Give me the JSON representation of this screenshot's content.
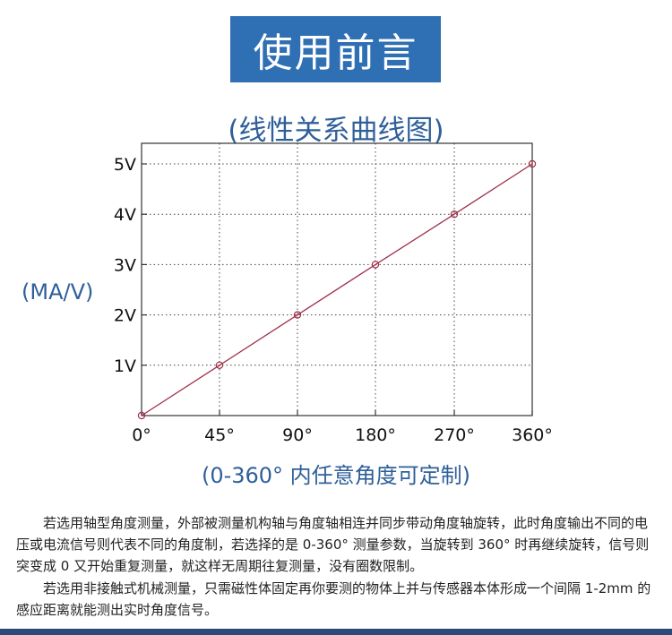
{
  "header": {
    "title": "使用前言",
    "subtitle": "(线性关系曲线图)"
  },
  "chart_data": {
    "type": "line",
    "ylabel": "(MA/V)",
    "xlabel": "(0-360° 内任意角度可定制)",
    "x": [
      0,
      45,
      90,
      180,
      270,
      360
    ],
    "x_tick_labels": [
      "0°",
      "45°",
      "90°",
      "180°",
      "270°",
      "360°"
    ],
    "y_tick_values": [
      1,
      2,
      3,
      4,
      5
    ],
    "y_tick_labels": [
      "1V",
      "2V",
      "3V",
      "4V",
      "5V"
    ],
    "series": [
      {
        "values": [
          0,
          1,
          2,
          3,
          4,
          5
        ]
      }
    ],
    "ylim": [
      0,
      5
    ],
    "grid": true,
    "line_color": "#a0304a",
    "marker": "open-circle"
  },
  "description": {
    "p1": "若选用轴型角度测量，外部被测量机构轴与角度轴相连并同步带动角度轴旋转，此时角度输出不同的电压或电流信号则代表不同的角度制，若选择的是 0-360° 测量参数，当旋转到 360° 时再继续旋转，信号则突变成 0 又开始重复测量，就这样无周期往复测量，没有圈数限制。",
    "p2": "若选用非接触式机械测量，只需磁性体固定再你要测的物体上并与传感器本体形成一个间隔 1-2mm 的感应距离就能测出实时角度信号。"
  },
  "colors": {
    "title_bg": "#2f6fb3",
    "accent_text": "#2f5f9a",
    "bottom_rule": "#2a4a7a"
  }
}
